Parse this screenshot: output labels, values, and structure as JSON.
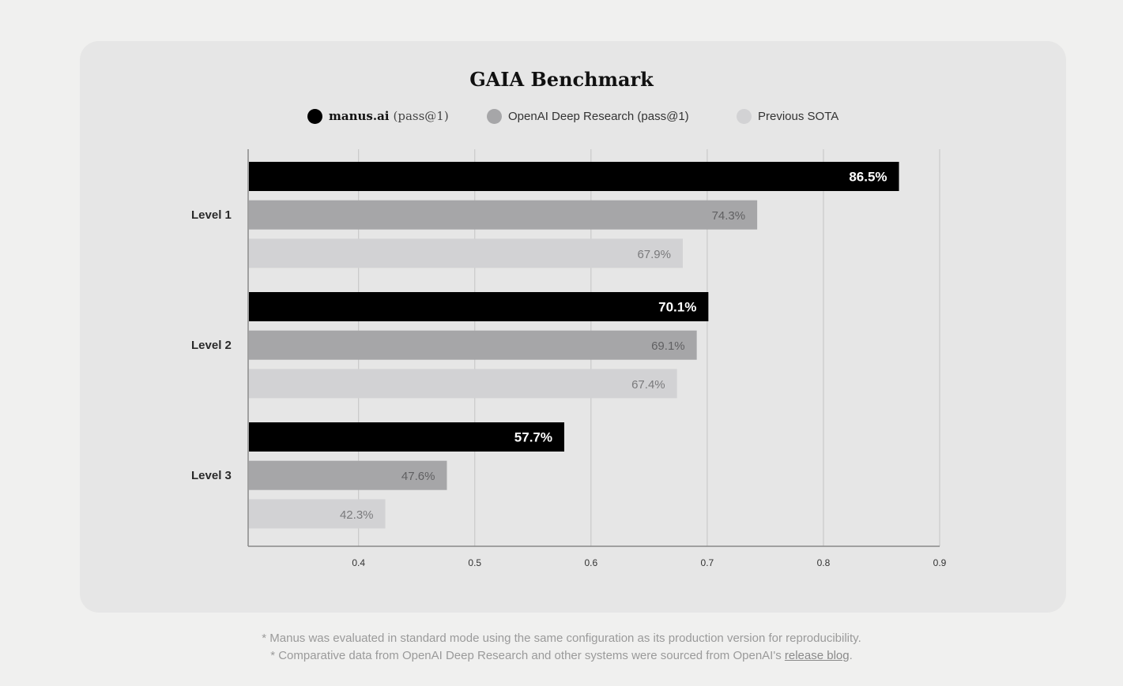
{
  "chart_data": {
    "type": "bar",
    "orientation": "horizontal",
    "title": "GAIA Benchmark",
    "categories": [
      "Level 1",
      "Level 2",
      "Level 3"
    ],
    "series": [
      {
        "name": "manus.ai",
        "name_suffix": "(pass@1)",
        "color": "#000000",
        "label_color": "#ffffff",
        "values": [
          0.865,
          0.701,
          0.577
        ],
        "labels": [
          "86.5%",
          "70.1%",
          "57.7%"
        ]
      },
      {
        "name": "OpenAI Deep Research (pass@1)",
        "color": "#a6a6a8",
        "label_color": "#606062",
        "values": [
          0.743,
          0.691,
          0.476
        ],
        "labels": [
          "74.3%",
          "69.1%",
          "47.6%"
        ]
      },
      {
        "name": "Previous SOTA",
        "color": "#d2d2d4",
        "label_color": "#7a7a7c",
        "values": [
          0.679,
          0.674,
          0.423
        ],
        "labels": [
          "67.9%",
          "67.4%",
          "42.3%"
        ]
      }
    ],
    "x_ticks": [
      "0.4",
      "0.5",
      "0.6",
      "0.7",
      "0.8",
      "0.9"
    ],
    "xlim": [
      0.305,
      0.9
    ],
    "grid": true,
    "legend_position": "top-center"
  },
  "footnotes": {
    "line1": "* Manus was evaluated in standard mode using the same configuration as its production version for reproducibility.",
    "line2_prefix": "* Comparative data from OpenAI Deep Research and other systems were sourced from OpenAI's ",
    "line2_link": "release blog",
    "line2_suffix": "."
  }
}
